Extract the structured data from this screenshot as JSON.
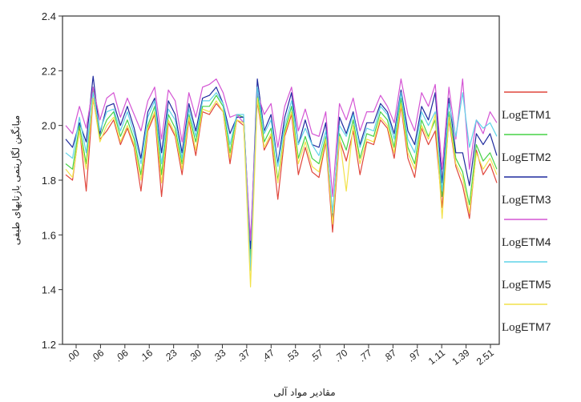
{
  "chart_data": {
    "type": "line",
    "title": "",
    "xlabel": "مقادیر مواد آلی",
    "ylabel": "میانگین لگاریتمی بازتابهای طیفی",
    "ylim": [
      1.2,
      2.4
    ],
    "yticks": [
      "1.2",
      "1.4",
      "1.6",
      "1.8",
      "2.0",
      "2.2",
      "2.4"
    ],
    "xtick_labels": [
      ".00",
      ".06",
      ".06",
      ".16",
      ".23",
      ".30",
      ".33",
      ".37",
      ".47",
      ".53",
      ".57",
      ".70",
      ".77",
      ".87",
      ".97",
      "1.11",
      "1.39",
      "2.51"
    ],
    "legend_position": "right",
    "grid": false,
    "series": [
      {
        "name": "LogETM1",
        "log_part": "Log",
        "etm_part": "ETM1",
        "color": "#e0463c",
        "values": [
          1.82,
          1.8,
          1.99,
          1.76,
          2.1,
          1.95,
          1.98,
          2.02,
          1.93,
          1.99,
          1.92,
          1.76,
          1.98,
          2.04,
          1.74,
          2.01,
          1.96,
          1.82,
          2.02,
          1.89,
          2.05,
          2.04,
          2.08,
          2.05,
          1.86,
          2.02,
          2.0,
          1.54,
          2.09,
          1.91,
          1.96,
          1.73,
          1.96,
          2.04,
          1.82,
          1.92,
          1.83,
          1.81,
          1.94,
          1.61,
          1.95,
          1.87,
          1.98,
          1.82,
          1.94,
          1.93,
          2.02,
          1.99,
          1.88,
          2.07,
          1.88,
          1.81,
          1.99,
          1.93,
          1.98,
          1.7,
          2.02,
          1.85,
          1.78,
          1.66,
          1.91,
          1.82,
          1.86,
          1.79
        ]
      },
      {
        "name": "LogETM2",
        "log_part": "Log",
        "etm_part": "ETM2",
        "color": "#46d246",
        "values": [
          1.86,
          1.84,
          2.0,
          1.86,
          2.14,
          1.96,
          2.02,
          2.05,
          1.96,
          2.02,
          1.95,
          1.82,
          2.0,
          2.07,
          1.82,
          2.04,
          1.99,
          1.86,
          2.04,
          1.94,
          2.07,
          2.07,
          2.11,
          2.07,
          1.9,
          2.04,
          2.03,
          1.5,
          2.12,
          1.94,
          1.99,
          1.8,
          1.98,
          2.07,
          1.88,
          1.96,
          1.88,
          1.86,
          1.96,
          1.67,
          1.97,
          1.91,
          2.02,
          1.88,
          1.97,
          1.96,
          2.05,
          2.02,
          1.92,
          2.1,
          1.92,
          1.86,
          2.02,
          1.96,
          2.02,
          1.74,
          2.05,
          1.88,
          1.83,
          1.71,
          1.93,
          1.87,
          1.9,
          1.84
        ]
      },
      {
        "name": "LogETM3",
        "log_part": "Log",
        "etm_part": "ETM3",
        "color": "#1f2a9e",
        "values": [
          1.95,
          1.92,
          2.01,
          1.94,
          2.18,
          1.97,
          2.07,
          2.08,
          2.0,
          2.07,
          1.99,
          1.88,
          2.05,
          2.1,
          1.9,
          2.09,
          2.04,
          1.9,
          2.08,
          1.98,
          2.1,
          2.11,
          2.14,
          2.08,
          1.97,
          2.03,
          2.03,
          1.55,
          2.17,
          1.98,
          2.04,
          1.86,
          2.03,
          2.12,
          1.93,
          2.02,
          1.93,
          1.92,
          2.01,
          1.65,
          2.03,
          1.97,
          2.05,
          1.93,
          2.01,
          2.01,
          2.08,
          2.05,
          1.97,
          2.13,
          1.98,
          1.93,
          2.07,
          2.02,
          2.12,
          1.79,
          2.1,
          1.9,
          1.9,
          1.78,
          1.97,
          1.93,
          1.97,
          1.89
        ]
      },
      {
        "name": "LogETM4",
        "log_part": "Log",
        "etm_part": "ETM4",
        "color": "#d455d4",
        "values": [
          2.0,
          1.97,
          2.07,
          1.99,
          2.14,
          2.02,
          2.1,
          2.12,
          2.03,
          2.1,
          2.04,
          1.98,
          2.09,
          2.14,
          1.95,
          2.13,
          2.09,
          1.94,
          2.12,
          2.03,
          2.14,
          2.15,
          2.17,
          2.12,
          2.03,
          2.04,
          2.01,
          1.58,
          2.12,
          2.04,
          2.08,
          1.92,
          2.07,
          2.14,
          1.98,
          2.06,
          1.97,
          1.96,
          2.05,
          1.74,
          2.08,
          2.02,
          2.1,
          1.98,
          2.05,
          2.05,
          2.11,
          2.07,
          2.01,
          2.17,
          2.04,
          1.98,
          2.12,
          2.07,
          2.15,
          1.84,
          2.14,
          1.95,
          2.17,
          1.84,
          2.02,
          1.97,
          2.05,
          2.01
        ]
      },
      {
        "name": "LogETM5",
        "log_part": "Log",
        "etm_part": "ETM5",
        "color": "#5fd3e8",
        "values": [
          1.9,
          1.88,
          2.03,
          1.9,
          2.12,
          1.98,
          2.05,
          2.06,
          1.98,
          2.05,
          1.97,
          1.86,
          2.03,
          2.09,
          1.86,
          2.06,
          2.02,
          1.88,
          2.06,
          1.96,
          2.09,
          2.09,
          2.12,
          2.08,
          1.93,
          2.04,
          2.04,
          1.47,
          2.14,
          1.97,
          2.02,
          1.85,
          2.0,
          2.09,
          1.93,
          1.99,
          1.93,
          1.89,
          1.98,
          1.68,
          2.0,
          1.96,
          2.04,
          1.92,
          1.99,
          1.98,
          2.07,
          2.04,
          1.95,
          2.12,
          1.95,
          1.9,
          2.05,
          2.0,
          2.05,
          1.76,
          2.08,
          1.96,
          2.12,
          1.92,
          2.02,
          1.99,
          2.01,
          1.96
        ]
      },
      {
        "name": "LogETM7",
        "log_part": "Log",
        "etm_part": "ETM7",
        "color": "#f2e24a",
        "values": [
          1.84,
          1.81,
          1.98,
          1.84,
          2.1,
          1.94,
          2.0,
          2.03,
          1.94,
          2.0,
          1.93,
          1.8,
          1.99,
          2.05,
          1.79,
          2.02,
          1.97,
          1.84,
          2.03,
          1.91,
          2.06,
          2.05,
          2.09,
          2.05,
          1.88,
          2.02,
          2.01,
          1.41,
          2.1,
          1.92,
          1.97,
          1.79,
          1.97,
          2.05,
          1.86,
          1.94,
          1.85,
          1.83,
          1.95,
          1.64,
          1.96,
          1.76,
          2.0,
          1.86,
          1.95,
          1.94,
          2.03,
          2.0,
          1.9,
          2.08,
          1.9,
          1.84,
          2.0,
          1.95,
          2.04,
          1.66,
          2.03,
          1.86,
          1.81,
          1.68,
          1.9,
          1.84,
          1.88,
          1.82
        ]
      }
    ]
  }
}
